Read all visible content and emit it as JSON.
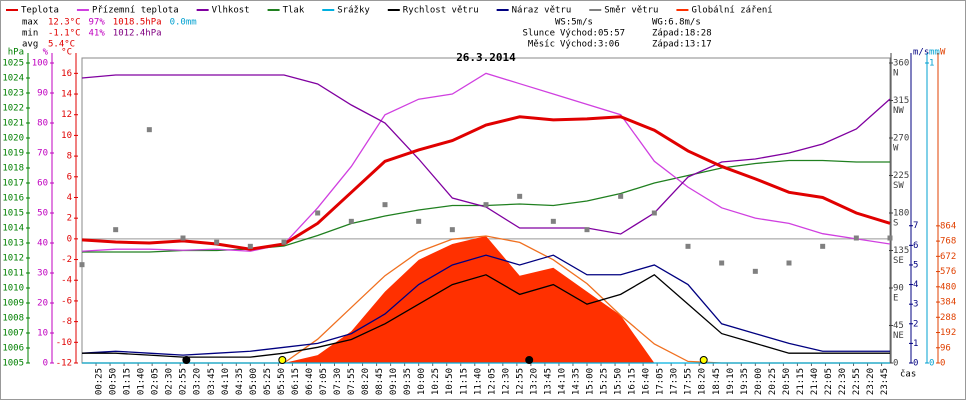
{
  "chart_data": {
    "type": "line",
    "title": "26.3.2014",
    "x_axis_label": "čas",
    "legend_order": [
      "temp",
      "ground",
      "hum",
      "press",
      "rain",
      "wind",
      "gust",
      "dir",
      "solar"
    ],
    "x": [
      0,
      60,
      120,
      180,
      240,
      300,
      360,
      420,
      480,
      540,
      600,
      660,
      720,
      780,
      840,
      900,
      960,
      1020,
      1080,
      1140,
      1200,
      1260,
      1320,
      1380,
      1440
    ],
    "xlim": [
      0,
      1440
    ],
    "xticks": [
      {
        "value": 25,
        "label": "00:25"
      },
      {
        "value": 50,
        "label": "00:50"
      },
      {
        "value": 75,
        "label": "01:15"
      },
      {
        "value": 100,
        "label": "01:40"
      },
      {
        "value": 125,
        "label": "02:05"
      },
      {
        "value": 150,
        "label": "02:30"
      },
      {
        "value": 175,
        "label": "02:55"
      },
      {
        "value": 200,
        "label": "03:20"
      },
      {
        "value": 225,
        "label": "03:45"
      },
      {
        "value": 250,
        "label": "04:10"
      },
      {
        "value": 275,
        "label": "04:35"
      },
      {
        "value": 300,
        "label": "05:00"
      },
      {
        "value": 325,
        "label": "05:25"
      },
      {
        "value": 350,
        "label": "05:50"
      },
      {
        "value": 375,
        "label": "06:15"
      },
      {
        "value": 400,
        "label": "06:40"
      },
      {
        "value": 425,
        "label": "07:05"
      },
      {
        "value": 450,
        "label": "07:30"
      },
      {
        "value": 475,
        "label": "07:55"
      },
      {
        "value": 500,
        "label": "08:20"
      },
      {
        "value": 525,
        "label": "08:45"
      },
      {
        "value": 550,
        "label": "09:10"
      },
      {
        "value": 575,
        "label": "09:35"
      },
      {
        "value": 600,
        "label": "10:00"
      },
      {
        "value": 625,
        "label": "10:25"
      },
      {
        "value": 650,
        "label": "10:50"
      },
      {
        "value": 675,
        "label": "11:15"
      },
      {
        "value": 700,
        "label": "11:40"
      },
      {
        "value": 725,
        "label": "12:05"
      },
      {
        "value": 750,
        "label": "12:30"
      },
      {
        "value": 775,
        "label": "12:55"
      },
      {
        "value": 800,
        "label": "13:20"
      },
      {
        "value": 825,
        "label": "13:45"
      },
      {
        "value": 850,
        "label": "14:10"
      },
      {
        "value": 875,
        "label": "14:35"
      },
      {
        "value": 900,
        "label": "15:00"
      },
      {
        "value": 925,
        "label": "15:25"
      },
      {
        "value": 950,
        "label": "15:50"
      },
      {
        "value": 975,
        "label": "16:15"
      },
      {
        "value": 1000,
        "label": "16:40"
      },
      {
        "value": 1025,
        "label": "17:05"
      },
      {
        "value": 1050,
        "label": "17:30"
      },
      {
        "value": 1075,
        "label": "17:55"
      },
      {
        "value": 1100,
        "label": "18:20"
      },
      {
        "value": 1125,
        "label": "18:45"
      },
      {
        "value": 1150,
        "label": "19:10"
      },
      {
        "value": 1175,
        "label": "19:35"
      },
      {
        "value": 1200,
        "label": "20:00"
      },
      {
        "value": 1225,
        "label": "20:25"
      },
      {
        "value": 1250,
        "label": "20:50"
      },
      {
        "value": 1275,
        "label": "21:15"
      },
      {
        "value": 1300,
        "label": "21:40"
      },
      {
        "value": 1325,
        "label": "22:05"
      },
      {
        "value": 1350,
        "label": "22:30"
      },
      {
        "value": 1375,
        "label": "22:55"
      },
      {
        "value": 1400,
        "label": "23:20"
      },
      {
        "value": 1425,
        "label": "23:45"
      }
    ],
    "axes": {
      "press": {
        "unit": "hPa",
        "color": "#008000",
        "lim": [
          1005,
          1025
        ],
        "ticks": [
          1005,
          1006,
          1007,
          1008,
          1009,
          1010,
          1011,
          1012,
          1013,
          1014,
          1015,
          1016,
          1017,
          1018,
          1019,
          1020,
          1021,
          1022,
          1023,
          1024,
          1025
        ]
      },
      "hum": {
        "unit": "%",
        "color": "#c000c0",
        "lim": [
          0,
          100
        ],
        "ticks": [
          0,
          10,
          20,
          30,
          40,
          50,
          60,
          70,
          80,
          90,
          100
        ]
      },
      "temp": {
        "unit": "°C",
        "color": "#e00000",
        "lim": [
          -12,
          17
        ],
        "ticks": [
          -12,
          -10,
          -8,
          -6,
          -4,
          -2,
          0,
          2,
          4,
          6,
          8,
          10,
          12,
          14,
          16
        ]
      },
      "dir": {
        "color": "#404040",
        "lim": [
          0,
          360
        ],
        "ticks": [
          0,
          45,
          90,
          135,
          180,
          225,
          270,
          315,
          360
        ],
        "letters": [
          {
            "value": 45,
            "label": "NE"
          },
          {
            "value": 90,
            "label": "E"
          },
          {
            "value": 135,
            "label": "SE"
          },
          {
            "value": 180,
            "label": "S"
          },
          {
            "value": 225,
            "label": "SW"
          },
          {
            "value": 270,
            "label": "W"
          },
          {
            "value": 315,
            "label": "NW"
          },
          {
            "value": 360,
            "label": "N"
          }
        ]
      },
      "wind": {
        "unit": "m/s",
        "color": "#000080",
        "lim": [
          0,
          15.3
        ],
        "ticks": [
          0,
          1,
          2,
          3,
          4,
          5,
          6,
          7
        ]
      },
      "rain": {
        "unit": "mm",
        "color": "#00a0d0",
        "lim": [
          0,
          1
        ],
        "ticks": [
          0,
          1
        ]
      },
      "solar": {
        "unit": "W",
        "color": "#e04000",
        "lim": [
          0,
          1890
        ],
        "ticks": [
          0,
          96,
          192,
          288,
          384,
          480,
          576,
          672,
          768,
          864
        ]
      }
    },
    "series": [
      {
        "key": "solar",
        "name": "Globální záření",
        "color": "#ff3000",
        "axis": "solar",
        "style": "area",
        "values": [
          0,
          0,
          0,
          0,
          0,
          0,
          0,
          50,
          200,
          450,
          650,
          750,
          800,
          550,
          600,
          450,
          300,
          0,
          0,
          0,
          0,
          0,
          0,
          0,
          0
        ]
      },
      {
        "key": "theory",
        "color": "#f07020",
        "axis": "solar",
        "style": "line",
        "values": [
          0,
          0,
          0,
          0,
          0,
          0,
          0,
          150,
          350,
          550,
          700,
          780,
          800,
          760,
          650,
          500,
          300,
          120,
          10,
          0,
          0,
          0,
          0,
          0,
          0
        ]
      },
      {
        "key": "press",
        "name": "Tlak",
        "color": "#208020",
        "axis": "press",
        "style": "line",
        "values": [
          1012.4,
          1012.4,
          1012.4,
          1012.5,
          1012.5,
          1012.6,
          1012.8,
          1013.5,
          1014.3,
          1014.8,
          1015.2,
          1015.5,
          1015.5,
          1015.6,
          1015.5,
          1015.8,
          1016.3,
          1017,
          1017.5,
          1018,
          1018.3,
          1018.5,
          1018.5,
          1018.4,
          1018.4
        ]
      },
      {
        "key": "ground",
        "name": "Přízemní teplota",
        "color": "#d040e0",
        "axis": "temp",
        "style": "line",
        "values": [
          -1.2,
          -1,
          -1,
          -1.1,
          -1,
          -1.2,
          -0.5,
          3,
          7,
          12,
          13.5,
          14,
          16,
          15,
          14,
          13,
          12,
          7.5,
          5,
          3,
          2,
          1.5,
          0.5,
          0,
          -0.5
        ]
      },
      {
        "key": "hum",
        "name": "Vlhkost",
        "color": "#8000a0",
        "axis": "hum",
        "style": "line",
        "values": [
          95,
          96,
          96,
          96,
          96,
          96,
          96,
          93,
          86,
          80,
          68,
          55,
          52,
          45,
          45,
          45,
          43,
          50,
          62,
          67,
          68,
          70,
          73,
          78,
          88
        ]
      },
      {
        "key": "temp",
        "name": "Teplota",
        "color": "#e00000",
        "axis": "temp",
        "style": "thick",
        "values": [
          -0.1,
          -0.3,
          -0.4,
          -0.2,
          -0.5,
          -1,
          -0.5,
          1.5,
          4.5,
          7.5,
          8.6,
          9.5,
          11,
          11.8,
          11.5,
          11.6,
          11.8,
          10.5,
          8.5,
          7,
          5.8,
          4.5,
          4,
          2.5,
          1.5
        ]
      },
      {
        "key": "rain",
        "name": "Srážky",
        "color": "#00b0e0",
        "axis": "rain",
        "style": "line",
        "values": [
          0,
          0,
          0,
          0,
          0,
          0,
          0,
          0,
          0,
          0,
          0,
          0,
          0,
          0,
          0,
          0,
          0,
          0,
          0,
          0,
          0,
          0,
          0,
          0,
          0
        ]
      },
      {
        "key": "dir",
        "name": "Směr větru",
        "color": "#808080",
        "axis": "dir",
        "style": "points",
        "values": [
          118,
          160,
          280,
          150,
          145,
          140,
          145,
          180,
          170,
          190,
          170,
          160,
          190,
          200,
          170,
          160,
          200,
          180,
          140,
          120,
          110,
          120,
          140,
          150,
          150
        ]
      },
      {
        "key": "gust",
        "name": "Náraz větru",
        "color": "#000080",
        "axis": "wind",
        "style": "line",
        "values": [
          0.5,
          0.6,
          0.5,
          0.4,
          0.5,
          0.6,
          0.8,
          1,
          1.5,
          2.5,
          4,
          5,
          5.5,
          5,
          5.5,
          4.5,
          4.5,
          5,
          4,
          2,
          1.5,
          1,
          0.6,
          0.6,
          0.6
        ]
      },
      {
        "key": "wind",
        "name": "Rychlost větru",
        "color": "#000000",
        "axis": "wind",
        "style": "line",
        "values": [
          0.5,
          0.5,
          0.4,
          0.3,
          0.3,
          0.3,
          0.5,
          0.8,
          1.2,
          2,
          3,
          4,
          4.5,
          3.5,
          4,
          3,
          3.5,
          4.5,
          3,
          1.5,
          1,
          0.5,
          0.5,
          0.5,
          0.5
        ]
      }
    ],
    "stats": [
      {
        "label": "max",
        "items": [
          {
            "text": "12.3°C",
            "color": "#e00000"
          },
          {
            "text": "97%",
            "color": "#c000c0"
          },
          {
            "text": "1018.5hPa",
            "color": "#e00000"
          },
          {
            "text": "0.0mm",
            "color": "#00a0d0"
          }
        ]
      },
      {
        "label": "min",
        "items": [
          {
            "text": "-1.1°C",
            "color": "#e00000"
          },
          {
            "text": "41%",
            "color": "#c000c0"
          },
          {
            "text": "1012.4hPa",
            "color": "#800080"
          }
        ]
      },
      {
        "label": "avg",
        "items": [
          {
            "text": "5.4°C",
            "color": "#e00000"
          }
        ]
      }
    ],
    "ws": "WS:5m/s",
    "wg": "WG:6.8m/s",
    "rise_label": "Východ:",
    "set_label": "Západ:",
    "sun": {
      "label": "Slunce",
      "rise": "05:57",
      "set": "18:28"
    },
    "moon": {
      "label": "Měsíc",
      "rise": "3:06",
      "set": "13:17"
    }
  }
}
